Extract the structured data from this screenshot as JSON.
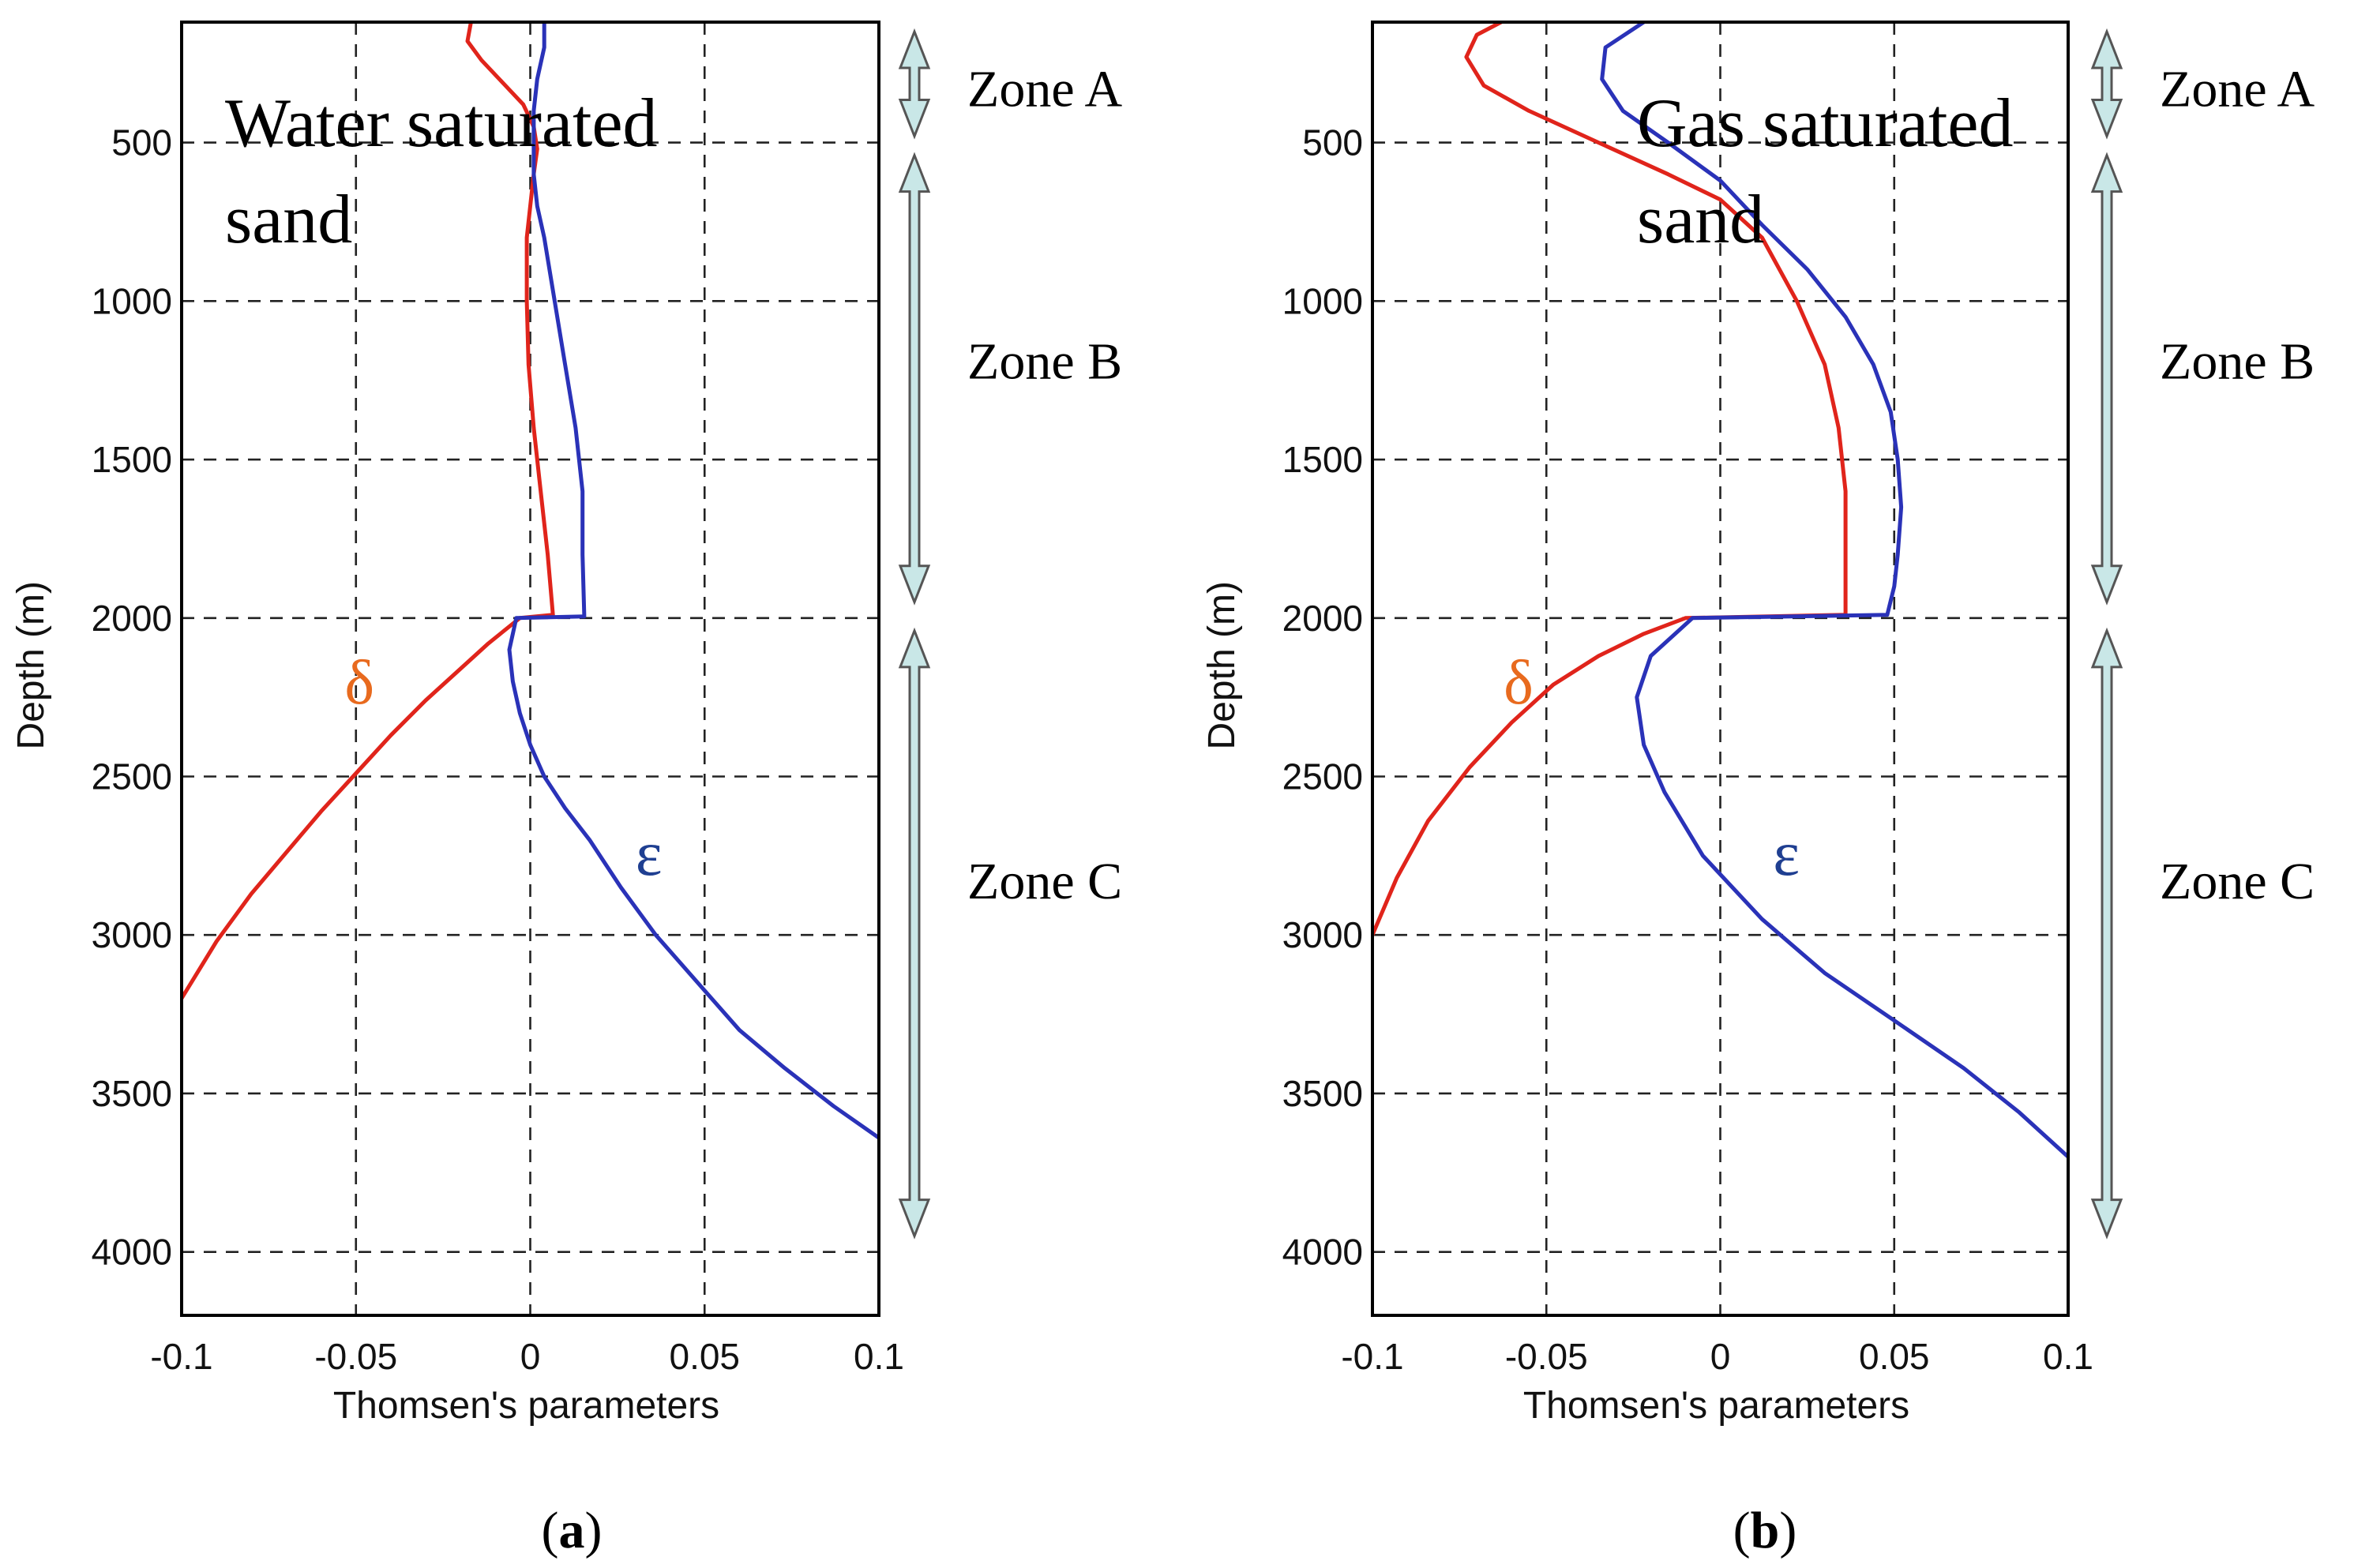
{
  "chart_data": [
    {
      "type": "line",
      "panel_label": "a",
      "inset_title": [
        "Water saturated",
        "sand"
      ],
      "xlabel": "Thomsen's parameters",
      "ylabel": "Depth (m)",
      "xlim": [
        -0.1,
        0.1
      ],
      "ylim": [
        4200,
        120
      ],
      "y_inverted": true,
      "xticks": [
        -0.1,
        -0.05,
        0,
        0.05,
        0.1
      ],
      "xtick_labels": [
        "-0.1",
        "-0.05",
        "0",
        "0.05",
        "0.1"
      ],
      "yticks": [
        500,
        1000,
        1500,
        2000,
        2500,
        3000,
        3500,
        4000
      ],
      "ytick_labels": [
        "500",
        "1000",
        "1500",
        "2000",
        "2500",
        "3000",
        "3500",
        "4000"
      ],
      "grid": true,
      "series": [
        {
          "name": "δ",
          "color": "#e0241b",
          "label_color": "#e86a1e",
          "label_at": {
            "x": -0.049,
            "y": 2270
          },
          "points": [
            [
              -0.017,
              120
            ],
            [
              -0.018,
              180
            ],
            [
              -0.014,
              240
            ],
            [
              -0.008,
              310
            ],
            [
              -0.002,
              380
            ],
            [
              0.001,
              450
            ],
            [
              0.002,
              520
            ],
            [
              0.001,
              600
            ],
            [
              0.0,
              700
            ],
            [
              -0.001,
              800
            ],
            [
              -0.001,
              1000
            ],
            [
              -0.0005,
              1200
            ],
            [
              0.001,
              1400
            ],
            [
              0.003,
              1600
            ],
            [
              0.005,
              1800
            ],
            [
              0.0065,
              1990
            ],
            [
              -0.003,
              2000
            ],
            [
              -0.012,
              2080
            ],
            [
              -0.02,
              2160
            ],
            [
              -0.03,
              2260
            ],
            [
              -0.04,
              2370
            ],
            [
              -0.05,
              2490
            ],
            [
              -0.06,
              2610
            ],
            [
              -0.07,
              2740
            ],
            [
              -0.08,
              2870
            ],
            [
              -0.09,
              3020
            ],
            [
              -0.1,
              3200
            ]
          ]
        },
        {
          "name": "ε",
          "color": "#2a32b8",
          "label_color": "#1f3f91",
          "label_at": {
            "x": 0.034,
            "y": 2810
          },
          "points": [
            [
              0.004,
              120
            ],
            [
              0.004,
              200
            ],
            [
              0.002,
              300
            ],
            [
              0.001,
              400
            ],
            [
              0.001,
              500
            ],
            [
              0.001,
              600
            ],
            [
              0.002,
              700
            ],
            [
              0.004,
              800
            ],
            [
              0.007,
              1000
            ],
            [
              0.01,
              1200
            ],
            [
              0.013,
              1400
            ],
            [
              0.015,
              1600
            ],
            [
              0.015,
              1800
            ],
            [
              0.0155,
              1995
            ],
            [
              -0.004,
              2000
            ],
            [
              -0.006,
              2100
            ],
            [
              -0.005,
              2200
            ],
            [
              -0.003,
              2300
            ],
            [
              0.0,
              2400
            ],
            [
              0.004,
              2500
            ],
            [
              0.01,
              2600
            ],
            [
              0.017,
              2700
            ],
            [
              0.026,
              2850
            ],
            [
              0.036,
              3000
            ],
            [
              0.048,
              3150
            ],
            [
              0.06,
              3300
            ],
            [
              0.073,
              3420
            ],
            [
              0.087,
              3540
            ],
            [
              0.1,
              3640
            ]
          ]
        }
      ],
      "zones": [
        {
          "label": "Zone A",
          "from": 150,
          "to": 480,
          "label_depth": 330
        },
        {
          "label": "Zone B",
          "from": 540,
          "to": 1950,
          "label_depth": 1190
        },
        {
          "label": "Zone C",
          "from": 2040,
          "to": 3950,
          "label_depth": 2830
        }
      ]
    },
    {
      "type": "line",
      "panel_label": "b",
      "inset_title": [
        "Gas saturated",
        "sand"
      ],
      "xlabel": "Thomsen's parameters",
      "ylabel": "Depth (m)",
      "xlim": [
        -0.1,
        0.1
      ],
      "ylim": [
        4200,
        120
      ],
      "y_inverted": true,
      "xticks": [
        -0.1,
        -0.05,
        0,
        0.05,
        0.1
      ],
      "xtick_labels": [
        "-0.1",
        "-0.05",
        "0",
        "0.05",
        "0.1"
      ],
      "yticks": [
        500,
        1000,
        1500,
        2000,
        2500,
        3000,
        3500,
        4000
      ],
      "ytick_labels": [
        "500",
        "1000",
        "1500",
        "2000",
        "2500",
        "3000",
        "3500",
        "4000"
      ],
      "grid": true,
      "series": [
        {
          "name": "δ",
          "color": "#e0241b",
          "label_color": "#e86a1e",
          "label_at": {
            "x": -0.058,
            "y": 2270
          },
          "points": [
            [
              -0.063,
              120
            ],
            [
              -0.07,
              160
            ],
            [
              -0.073,
              230
            ],
            [
              -0.068,
              320
            ],
            [
              -0.055,
              400
            ],
            [
              -0.035,
              500
            ],
            [
              -0.015,
              600
            ],
            [
              0.0,
              680
            ],
            [
              0.012,
              800
            ],
            [
              0.022,
              1000
            ],
            [
              0.03,
              1200
            ],
            [
              0.034,
              1400
            ],
            [
              0.036,
              1600
            ],
            [
              0.036,
              1800
            ],
            [
              0.036,
              1990
            ],
            [
              -0.01,
              2000
            ],
            [
              -0.022,
              2050
            ],
            [
              -0.035,
              2120
            ],
            [
              -0.048,
              2210
            ],
            [
              -0.06,
              2330
            ],
            [
              -0.072,
              2470
            ],
            [
              -0.084,
              2640
            ],
            [
              -0.093,
              2820
            ],
            [
              -0.1,
              3000
            ]
          ]
        },
        {
          "name": "ε",
          "color": "#2a32b8",
          "label_color": "#1f3f91",
          "label_at": {
            "x": 0.019,
            "y": 2810
          },
          "points": [
            [
              -0.022,
              120
            ],
            [
              -0.033,
              200
            ],
            [
              -0.034,
              300
            ],
            [
              -0.028,
              400
            ],
            [
              -0.015,
              500
            ],
            [
              0.0,
              620
            ],
            [
              0.012,
              760
            ],
            [
              0.025,
              900
            ],
            [
              0.036,
              1050
            ],
            [
              0.044,
              1200
            ],
            [
              0.049,
              1350
            ],
            [
              0.051,
              1500
            ],
            [
              0.052,
              1650
            ],
            [
              0.051,
              1800
            ],
            [
              0.05,
              1900
            ],
            [
              0.048,
              1990
            ],
            [
              -0.008,
              2000
            ],
            [
              -0.02,
              2120
            ],
            [
              -0.024,
              2250
            ],
            [
              -0.022,
              2400
            ],
            [
              -0.016,
              2550
            ],
            [
              -0.005,
              2750
            ],
            [
              0.012,
              2950
            ],
            [
              0.03,
              3120
            ],
            [
              0.05,
              3270
            ],
            [
              0.07,
              3420
            ],
            [
              0.086,
              3560
            ],
            [
              0.1,
              3700
            ]
          ]
        }
      ],
      "zones": [
        {
          "label": "Zone A",
          "from": 150,
          "to": 480,
          "label_depth": 330
        },
        {
          "label": "Zone B",
          "from": 540,
          "to": 1950,
          "label_depth": 1190
        },
        {
          "label": "Zone C",
          "from": 2040,
          "to": 3950,
          "label_depth": 2830
        }
      ]
    }
  ]
}
